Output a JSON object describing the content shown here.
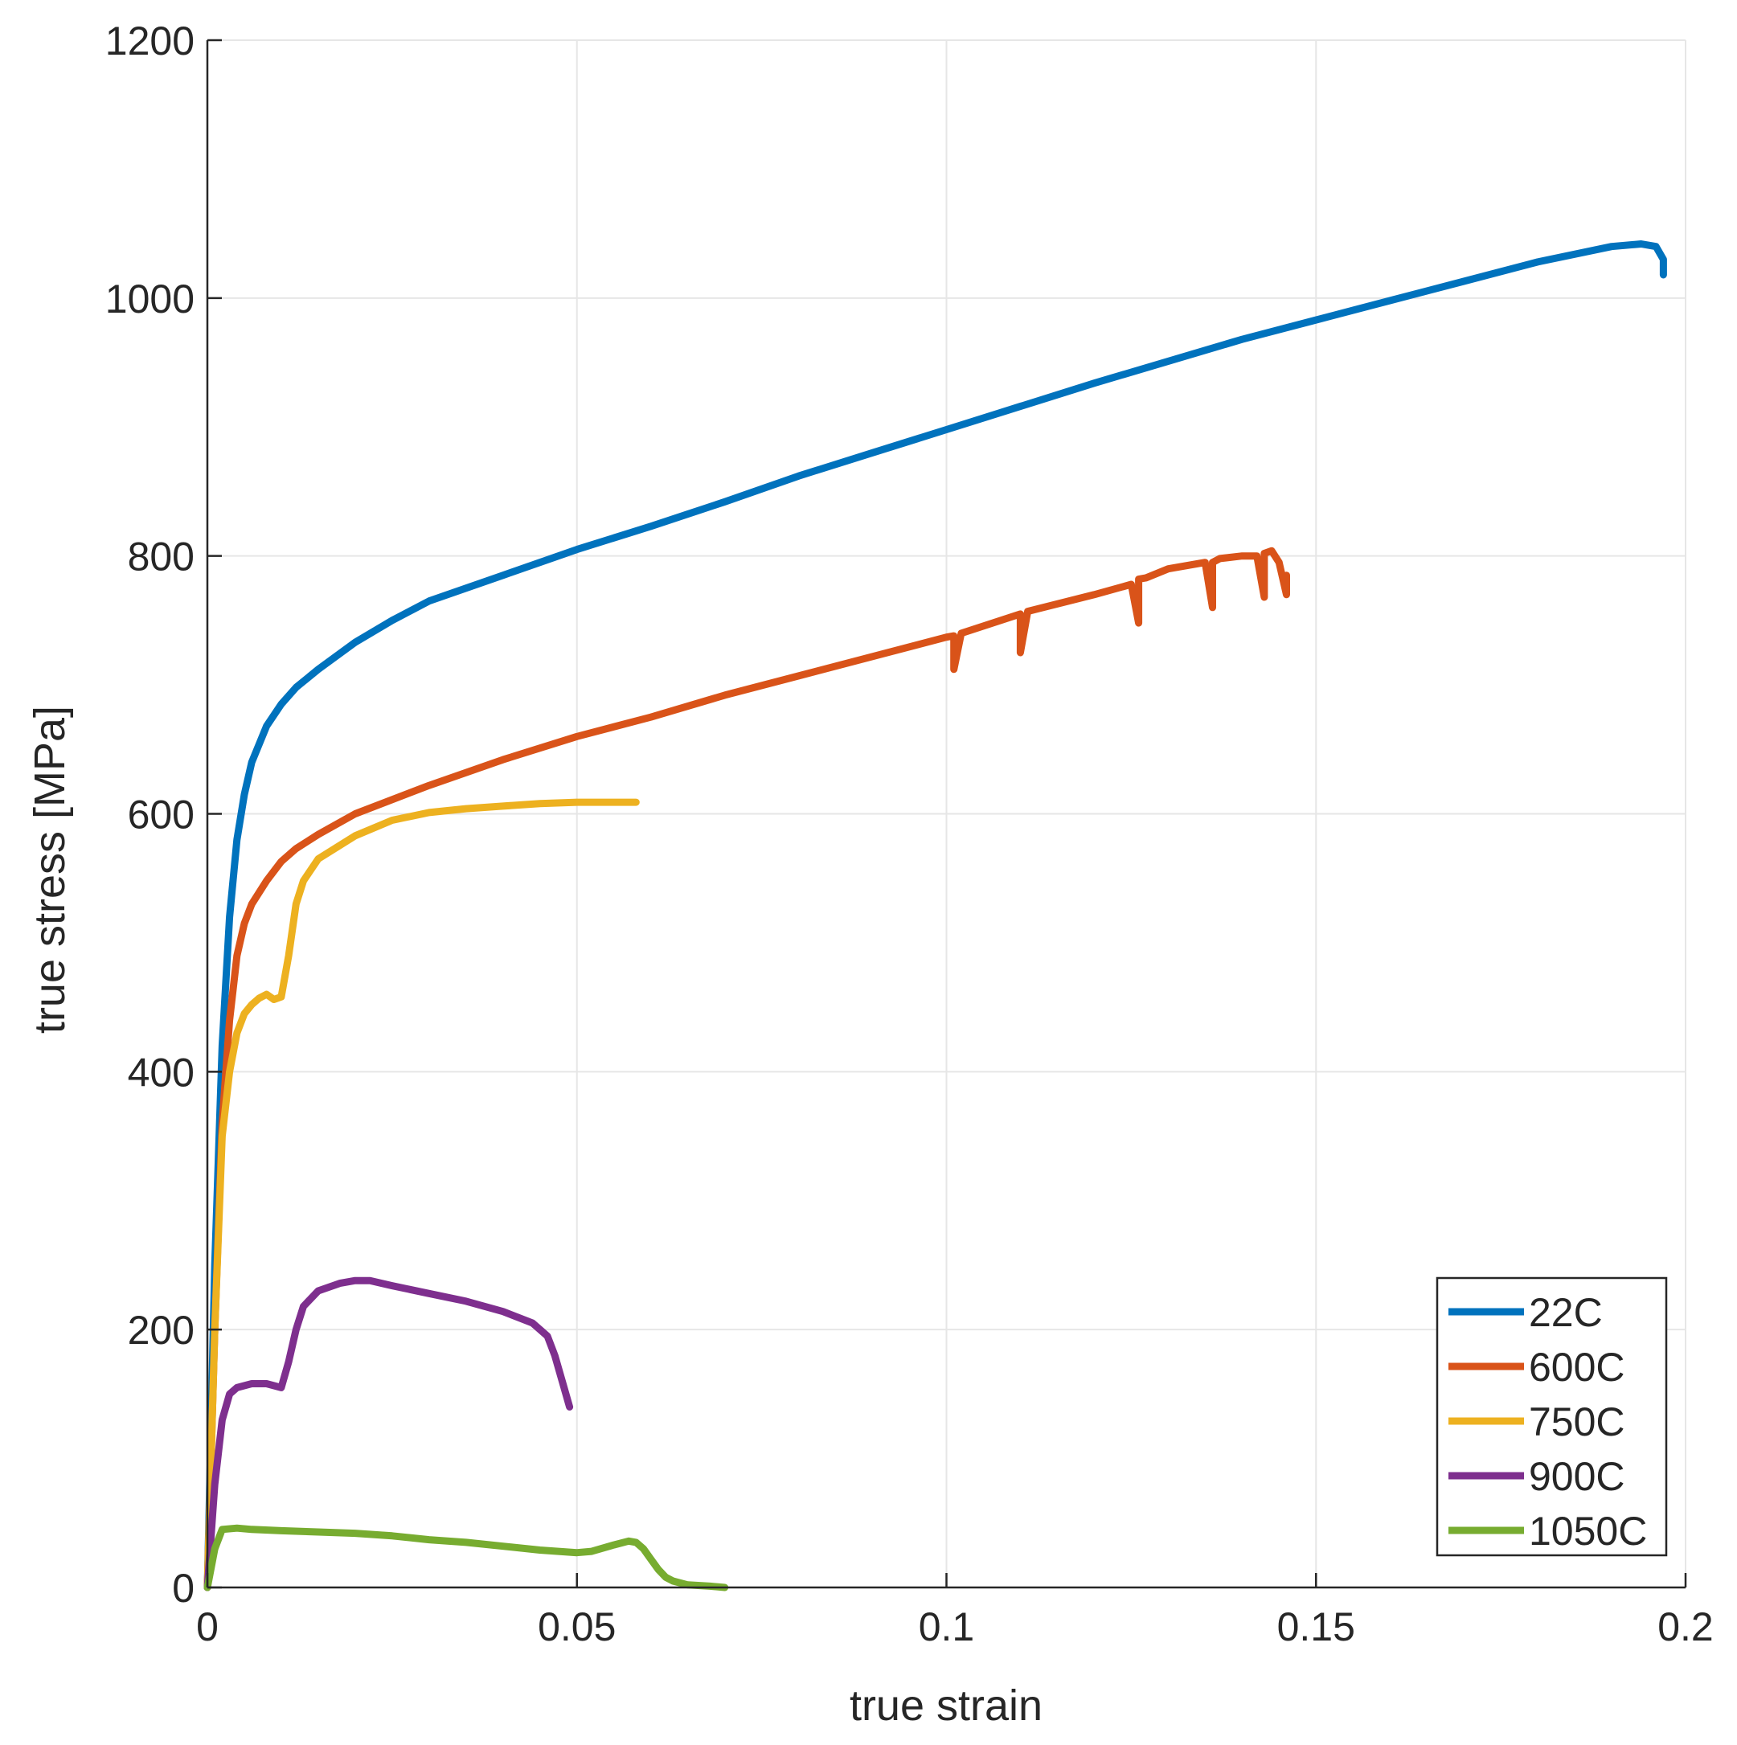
{
  "chart_data": {
    "type": "line",
    "title": "",
    "xlabel": "true strain",
    "ylabel": "true stress [MPa]",
    "xlim": [
      0,
      0.2
    ],
    "ylim": [
      0,
      1200
    ],
    "xticks": [
      0,
      0.05,
      0.1,
      0.15,
      0.2
    ],
    "xtick_labels": [
      "0",
      "0.05",
      "0.1",
      "0.15",
      "0.2"
    ],
    "yticks": [
      0,
      200,
      400,
      600,
      800,
      1000,
      1200
    ],
    "ytick_labels": [
      "0",
      "200",
      "400",
      "600",
      "800",
      "1000",
      "1200"
    ],
    "grid": true,
    "legend_position": "bottom-right",
    "series": [
      {
        "name": "22C",
        "color": "#0072BD",
        "x": [
          0,
          0.001,
          0.002,
          0.003,
          0.004,
          0.005,
          0.006,
          0.008,
          0.01,
          0.012,
          0.015,
          0.02,
          0.025,
          0.03,
          0.04,
          0.05,
          0.06,
          0.07,
          0.08,
          0.09,
          0.1,
          0.11,
          0.12,
          0.13,
          0.14,
          0.15,
          0.16,
          0.17,
          0.18,
          0.19,
          0.194,
          0.196,
          0.197,
          0.197
        ],
        "y": [
          0,
          250,
          420,
          520,
          580,
          615,
          640,
          668,
          685,
          698,
          712,
          733,
          750,
          765,
          785,
          805,
          823,
          842,
          862,
          880,
          898,
          916,
          934,
          951,
          968,
          983,
          998,
          1013,
          1028,
          1040,
          1042,
          1040,
          1030,
          1018
        ]
      },
      {
        "name": "600C",
        "color": "#D95319",
        "x": [
          0,
          0.001,
          0.002,
          0.003,
          0.004,
          0.005,
          0.006,
          0.008,
          0.01,
          0.012,
          0.015,
          0.02,
          0.03,
          0.04,
          0.05,
          0.06,
          0.07,
          0.08,
          0.09,
          0.1,
          0.101,
          0.101,
          0.102,
          0.11,
          0.11,
          0.111,
          0.12,
          0.125,
          0.126,
          0.126,
          0.127,
          0.13,
          0.135,
          0.136,
          0.136,
          0.137,
          0.14,
          0.142,
          0.143,
          0.143,
          0.144,
          0.145,
          0.146,
          0.146
        ],
        "y": [
          0,
          200,
          360,
          440,
          490,
          515,
          530,
          548,
          563,
          573,
          584,
          600,
          622,
          642,
          660,
          675,
          692,
          707,
          722,
          737,
          738,
          712,
          740,
          755,
          725,
          757,
          770,
          778,
          748,
          782,
          783,
          790,
          795,
          760,
          795,
          798,
          800,
          800,
          768,
          802,
          804,
          795,
          770,
          785
        ]
      },
      {
        "name": "750C",
        "color": "#EDB120",
        "x": [
          0,
          0.001,
          0.002,
          0.003,
          0.004,
          0.005,
          0.006,
          0.007,
          0.008,
          0.009,
          0.01,
          0.011,
          0.012,
          0.013,
          0.015,
          0.02,
          0.025,
          0.03,
          0.035,
          0.04,
          0.045,
          0.05,
          0.055,
          0.058
        ],
        "y": [
          0,
          200,
          350,
          400,
          430,
          445,
          452,
          457,
          460,
          456,
          458,
          490,
          530,
          548,
          565,
          583,
          595,
          601,
          604,
          606,
          608,
          609,
          609,
          609
        ]
      },
      {
        "name": "900C",
        "color": "#7E2F8E",
        "x": [
          0,
          0.001,
          0.002,
          0.003,
          0.004,
          0.006,
          0.008,
          0.01,
          0.011,
          0.012,
          0.013,
          0.015,
          0.018,
          0.02,
          0.022,
          0.025,
          0.03,
          0.035,
          0.04,
          0.044,
          0.046,
          0.047,
          0.048,
          0.049
        ],
        "y": [
          0,
          80,
          130,
          150,
          155,
          158,
          158,
          155,
          175,
          200,
          218,
          230,
          236,
          238,
          238,
          234,
          228,
          222,
          214,
          205,
          195,
          180,
          160,
          140
        ]
      },
      {
        "name": "1050C",
        "color": "#77AC30",
        "x": [
          0,
          0.001,
          0.002,
          0.004,
          0.006,
          0.01,
          0.015,
          0.02,
          0.025,
          0.03,
          0.035,
          0.04,
          0.045,
          0.05,
          0.052,
          0.055,
          0.057,
          0.058,
          0.059,
          0.06,
          0.061,
          0.062,
          0.063,
          0.065,
          0.068,
          0.07
        ],
        "y": [
          0,
          30,
          45,
          46,
          45,
          44,
          43,
          42,
          40,
          37,
          35,
          32,
          29,
          27,
          28,
          33,
          36,
          35,
          30,
          22,
          14,
          8,
          5,
          2,
          1,
          0
        ]
      }
    ]
  }
}
